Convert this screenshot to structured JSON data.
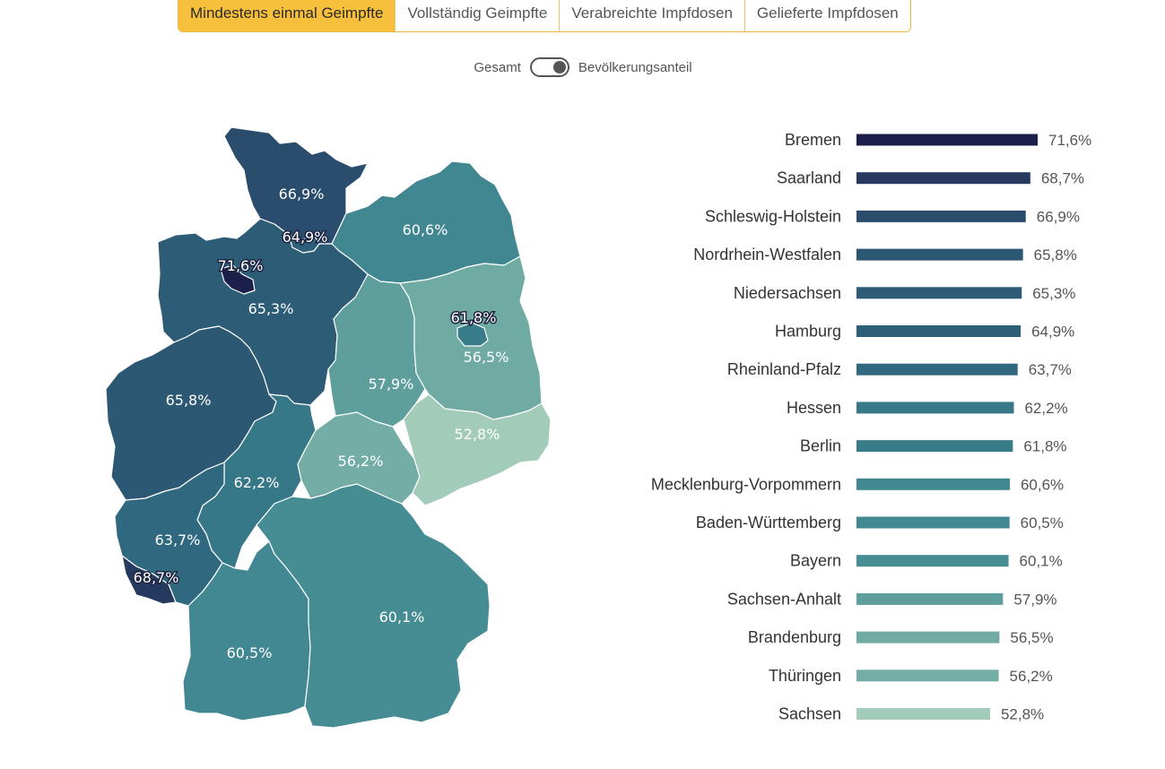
{
  "tabs": [
    {
      "label": "Mindestens einmal Geimpfte",
      "active": true
    },
    {
      "label": "Vollständig Geimpfte",
      "active": false
    },
    {
      "label": "Verabreichte Impfdosen",
      "active": false
    },
    {
      "label": "Gelieferte Impfdosen",
      "active": false
    }
  ],
  "toggle": {
    "left_label": "Gesamt",
    "right_label": "Bevölkerungsanteil",
    "selected": "Bevölkerungsanteil"
  },
  "colors": {
    "active_tab": "#f6bf3c",
    "scale_dark": "#1c1f4a",
    "scale_light": "#a3cbb9"
  },
  "chart_data": {
    "type": "bar",
    "orientation": "horizontal",
    "sort": "descending",
    "categories": [
      "Bremen",
      "Saarland",
      "Schleswig-Holstein",
      "Nordrhein-Westfalen",
      "Niedersachsen",
      "Hamburg",
      "Rheinland-Pfalz",
      "Hessen",
      "Berlin",
      "Mecklenburg-Vorpommern",
      "Baden-Württemberg",
      "Bayern",
      "Sachsen-Anhalt",
      "Brandenburg",
      "Thüringen",
      "Sachsen"
    ],
    "values": [
      71.6,
      68.7,
      66.9,
      65.8,
      65.3,
      64.9,
      63.7,
      62.2,
      61.8,
      60.6,
      60.5,
      60.1,
      57.9,
      56.5,
      56.2,
      52.8
    ],
    "value_labels": [
      "71,6%",
      "68,7%",
      "66,9%",
      "65,8%",
      "65,3%",
      "64,9%",
      "63,7%",
      "62,2%",
      "61,8%",
      "60,6%",
      "60,5%",
      "60,1%",
      "57,9%",
      "56,5%",
      "56,2%",
      "52,8%"
    ],
    "unit": "%",
    "map": {
      "type": "choropleth",
      "region": "Deutschland"
    }
  }
}
